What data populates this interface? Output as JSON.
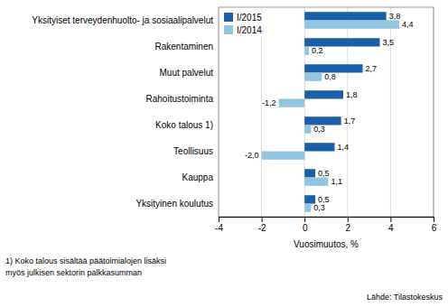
{
  "chart_data": {
    "type": "bar",
    "orientation": "horizontal",
    "categories": [
      "Yksityiset terveydenhuolto- ja sosiaalipalvelut",
      "Rakentaminen",
      "Muut palvelut",
      "Rahoitustoiminta",
      "Koko talous 1)",
      "Teollisuus",
      "Kauppa",
      "Yksityinen koulutus"
    ],
    "series": [
      {
        "name": "I/2015",
        "color": "#1a5fa8",
        "values": [
          3.8,
          3.5,
          2.7,
          1.8,
          1.7,
          1.4,
          0.5,
          0.5
        ],
        "value_labels": [
          "3,8",
          "3,5",
          "2,7",
          "1,8",
          "1,7",
          "1,4",
          "0,5",
          "0,5"
        ]
      },
      {
        "name": "I/2014",
        "color": "#92c6e0",
        "values": [
          4.4,
          0.2,
          0.8,
          -1.2,
          0.3,
          -2.0,
          1.1,
          0.3
        ],
        "value_labels": [
          "4,4",
          "0,2",
          "0,8",
          "-1,2",
          "0,3",
          "-2,0",
          "1,1",
          "0,3"
        ]
      }
    ],
    "xlabel": "Vuosimuutos, %",
    "xlim": [
      -4,
      6
    ],
    "xticks": [
      -4,
      -2,
      0,
      2,
      4,
      6
    ],
    "grid": true,
    "legend": "upper left",
    "data_labels": true,
    "annotations": [
      "1) Koko talous sisältää päätoimialojen lisäksi",
      "myös julkisen sektorin palkkasumman",
      "Lähde: Tilastokeskus"
    ]
  }
}
